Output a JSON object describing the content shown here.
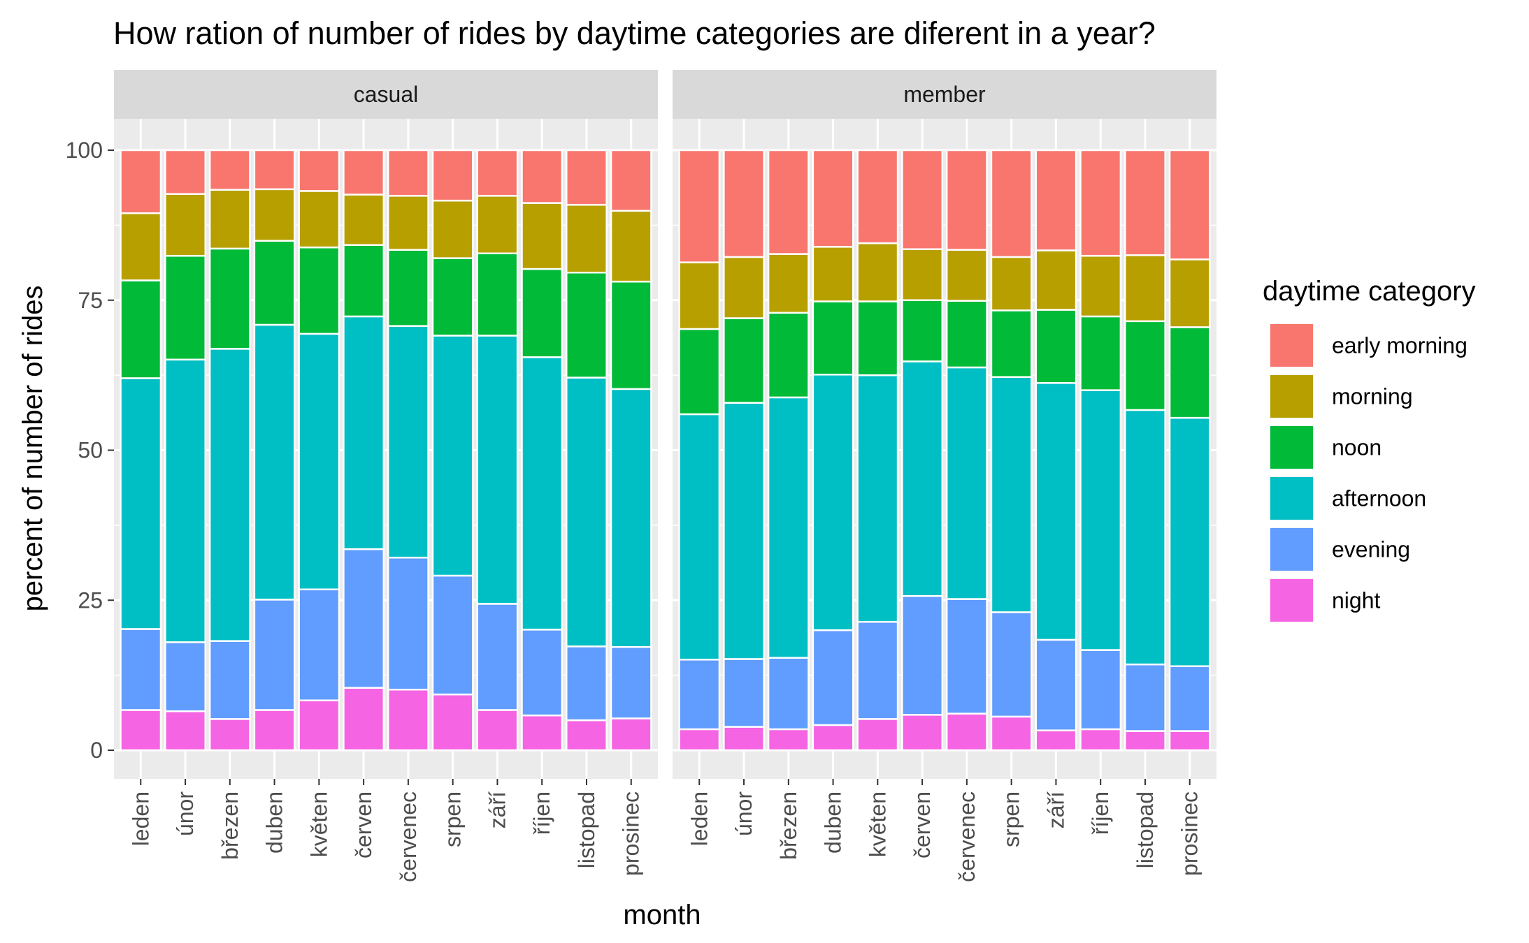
{
  "chart_data": {
    "type": "bar",
    "stacked": true,
    "title": "How ration of number of rides by daytime categories are diferent in a year?",
    "xlabel": "month",
    "ylabel": "percent of number of rides",
    "ylim": [
      0,
      100
    ],
    "yticks": [
      "0",
      "25",
      "50",
      "75",
      "100"
    ],
    "grid": true,
    "legend_position": "right",
    "legend_title": "daytime category",
    "categories": [
      "leden",
      "únor",
      "březen",
      "duben",
      "květen",
      "červen",
      "červenec",
      "srpen",
      "září",
      "říjen",
      "listopad",
      "prosinec"
    ],
    "legend": [
      {
        "name": "early morning",
        "color": "#F8766D"
      },
      {
        "name": "morning",
        "color": "#B79F00"
      },
      {
        "name": "noon",
        "color": "#00BA38"
      },
      {
        "name": "afternoon",
        "color": "#00BFC4"
      },
      {
        "name": "evening",
        "color": "#619CFF"
      },
      {
        "name": "night",
        "color": "#F564E3"
      }
    ],
    "panels": [
      {
        "label": "casual",
        "series": [
          {
            "name": "night",
            "values": [
              6.7,
              6.5,
              5.2,
              6.7,
              8.3,
              10.4,
              10.1,
              9.3,
              6.7,
              5.8,
              5.0,
              5.3
            ]
          },
          {
            "name": "evening",
            "values": [
              13.5,
              11.5,
              13.0,
              18.4,
              18.5,
              23.1,
              22.0,
              19.8,
              17.7,
              14.3,
              12.3,
              11.9
            ]
          },
          {
            "name": "afternoon",
            "values": [
              41.8,
              47.1,
              48.7,
              45.8,
              42.6,
              38.8,
              38.6,
              40.0,
              44.7,
              45.4,
              44.8,
              43.0
            ]
          },
          {
            "name": "noon",
            "values": [
              16.3,
              17.3,
              16.7,
              14.0,
              14.4,
              11.9,
              12.7,
              12.9,
              13.7,
              14.7,
              17.5,
              17.9
            ]
          },
          {
            "name": "morning",
            "values": [
              11.2,
              10.3,
              9.8,
              8.6,
              9.4,
              8.4,
              9.0,
              9.6,
              9.6,
              11.0,
              11.3,
              11.8
            ]
          },
          {
            "name": "early morning",
            "values": [
              10.5,
              7.3,
              6.6,
              6.5,
              6.8,
              7.4,
              7.6,
              8.4,
              7.6,
              8.8,
              9.1,
              10.1
            ]
          }
        ]
      },
      {
        "label": "member",
        "series": [
          {
            "name": "night",
            "values": [
              3.5,
              3.9,
              3.5,
              4.2,
              5.2,
              5.9,
              6.1,
              5.6,
              3.3,
              3.5,
              3.2,
              3.2
            ]
          },
          {
            "name": "evening",
            "values": [
              11.6,
              11.3,
              11.9,
              15.8,
              16.2,
              19.8,
              19.1,
              17.4,
              15.1,
              13.2,
              11.1,
              10.8
            ]
          },
          {
            "name": "afternoon",
            "values": [
              40.9,
              42.7,
              43.4,
              42.6,
              41.1,
              39.1,
              38.6,
              39.2,
              42.8,
              43.3,
              42.4,
              41.4
            ]
          },
          {
            "name": "noon",
            "values": [
              14.2,
              14.1,
              14.1,
              12.2,
              12.3,
              10.2,
              11.1,
              11.1,
              12.2,
              12.3,
              14.8,
              15.1
            ]
          },
          {
            "name": "morning",
            "values": [
              11.1,
              10.2,
              9.8,
              9.1,
              9.7,
              8.5,
              8.5,
              8.9,
              9.9,
              10.1,
              11.0,
              11.3
            ]
          },
          {
            "name": "early morning",
            "values": [
              18.7,
              17.8,
              17.3,
              16.1,
              15.5,
              16.5,
              16.6,
              17.8,
              16.7,
              17.6,
              17.5,
              18.2
            ]
          }
        ]
      }
    ]
  }
}
